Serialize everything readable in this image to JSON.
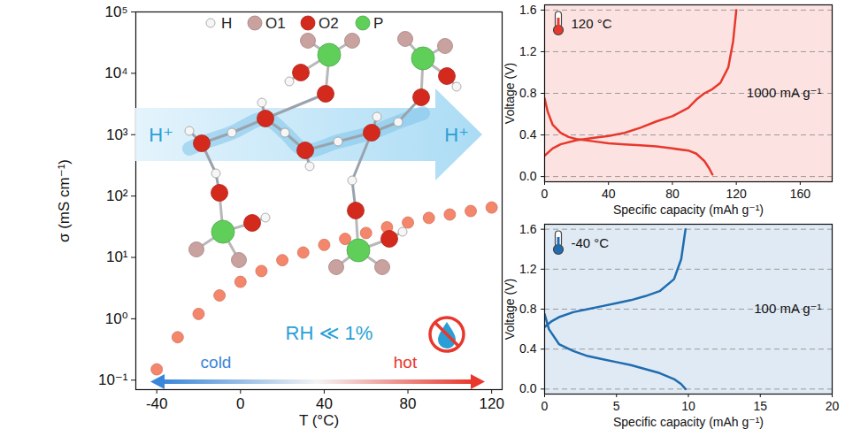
{
  "chart_data": [
    {
      "type": "scatter",
      "x_label": "T (°C)",
      "y_label": "σ (mS cm⁻¹)",
      "x": [
        -40,
        -30,
        -20,
        -10,
        0,
        10,
        20,
        30,
        40,
        50,
        60,
        70,
        80,
        90,
        100,
        110,
        120
      ],
      "values": [
        0.15,
        0.5,
        1.2,
        2.4,
        4,
        6,
        9,
        12,
        16,
        20,
        25,
        31,
        37,
        44,
        50,
        57,
        65
      ],
      "color": "#f4866b",
      "xlim": [
        -50,
        125
      ],
      "ylim": [
        0.07,
        100000
      ],
      "xticks": [
        -40,
        0,
        40,
        80,
        120
      ],
      "yticks": [
        {
          "value": 0.1,
          "label": "10⁻¹"
        },
        {
          "value": 1,
          "label": "10⁰"
        },
        {
          "value": 10,
          "label": "10¹"
        },
        {
          "value": 100,
          "label": "10²"
        },
        {
          "value": 1000,
          "label": "10³"
        },
        {
          "value": 10000,
          "label": "10⁴"
        },
        {
          "value": 100000,
          "label": "10⁵"
        }
      ],
      "log": "y",
      "grid": false,
      "annotations": [
        "H",
        "O1",
        "O2",
        "P",
        "H⁺",
        "H⁺",
        "RH ≪ 1%",
        "cold",
        "hot"
      ]
    },
    {
      "type": "line",
      "x_label": "Specific capacity (mAh g⁻¹)",
      "y_label": "Voltage (V)",
      "color": "#e8382d",
      "series": [
        {
          "x": [
            0,
            5,
            10,
            20,
            30,
            40,
            50,
            60,
            70,
            80,
            90,
            95,
            100,
            105,
            110,
            115,
            118,
            120
          ],
          "values": [
            0.2,
            0.27,
            0.31,
            0.35,
            0.37,
            0.39,
            0.42,
            0.47,
            0.53,
            0.58,
            0.66,
            0.74,
            0.8,
            0.84,
            0.9,
            1.05,
            1.3,
            1.6
          ]
        },
        {
          "x": [
            0,
            2,
            5,
            10,
            15,
            20,
            30,
            40,
            50,
            60,
            70,
            80,
            90,
            95,
            100,
            103,
            105
          ],
          "values": [
            0.75,
            0.62,
            0.5,
            0.42,
            0.38,
            0.36,
            0.34,
            0.32,
            0.31,
            0.3,
            0.29,
            0.27,
            0.25,
            0.22,
            0.15,
            0.08,
            0.02
          ]
        }
      ],
      "xlim": [
        0,
        180
      ],
      "ylim": [
        -0.05,
        1.65
      ],
      "xticks": [
        0,
        40,
        80,
        120,
        160
      ],
      "yticks": [
        {
          "value": 0,
          "label": "0.0"
        },
        0.4,
        0.8,
        1.2,
        1.6
      ],
      "grid": true,
      "annotations": [
        "120 °C",
        "1000 mA g⁻¹"
      ]
    },
    {
      "type": "line",
      "x_label": "Specific capacity (mAh g⁻¹)",
      "y_label": "Voltage (V)",
      "color": "#1f6cb0",
      "series": [
        {
          "x": [
            0,
            0.5,
            1,
            2,
            3,
            4,
            5,
            6,
            7,
            8,
            9,
            9.5,
            9.8
          ],
          "values": [
            0.62,
            0.68,
            0.72,
            0.77,
            0.8,
            0.83,
            0.86,
            0.89,
            0.93,
            0.98,
            1.1,
            1.3,
            1.6
          ]
        },
        {
          "x": [
            0,
            0.3,
            1,
            2,
            3,
            4,
            5,
            6,
            7,
            8,
            9,
            9.5,
            9.8
          ],
          "values": [
            0.75,
            0.6,
            0.45,
            0.38,
            0.33,
            0.3,
            0.27,
            0.24,
            0.2,
            0.16,
            0.1,
            0.05,
            0.0
          ]
        }
      ],
      "xlim": [
        0,
        20
      ],
      "ylim": [
        -0.05,
        1.65
      ],
      "xticks": [
        0,
        5,
        10,
        15,
        20
      ],
      "yticks": [
        {
          "value": 0,
          "label": "0.0"
        },
        0.4,
        0.8,
        1.2,
        1.6
      ],
      "grid": true,
      "annotations": [
        "-40 °C",
        "100 mA g⁻¹"
      ]
    }
  ]
}
